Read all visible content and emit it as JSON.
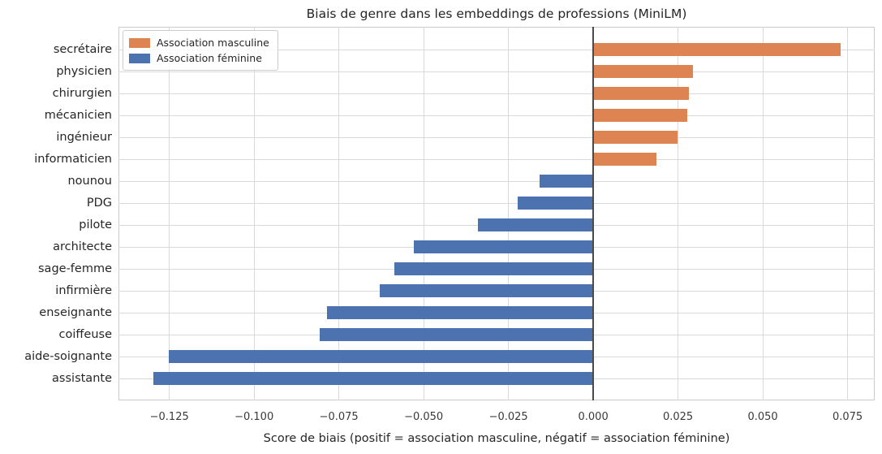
{
  "chart_data": {
    "type": "bar",
    "orientation": "horizontal",
    "title": "Biais de genre dans les embeddings de professions (MiniLM)",
    "xlabel": "Score de biais (positif = association masculine, négatif = association féminine)",
    "categories": [
      "secrétaire",
      "physicien",
      "chirurgien",
      "mécanicien",
      "ingénieur",
      "informaticien",
      "nounou",
      "PDG",
      "pilote",
      "architecte",
      "sage-femme",
      "infirmière",
      "enseignante",
      "coiffeuse",
      "aide-soignante",
      "assistante"
    ],
    "values": [
      0.0729,
      0.0295,
      0.0282,
      0.0277,
      0.0249,
      0.0186,
      -0.0158,
      -0.0222,
      -0.0341,
      -0.0529,
      -0.0587,
      -0.063,
      -0.0785,
      -0.0806,
      -0.1252,
      -0.1297
    ],
    "colors": {
      "positive": "#DD8452",
      "negative": "#4C72B0"
    },
    "legend": [
      {
        "label": "Association masculine",
        "color": "#DD8452"
      },
      {
        "label": "Association féminine",
        "color": "#4C72B0"
      }
    ],
    "legend_position": "upper left",
    "grid": true,
    "xlim": [
      -0.14,
      0.083
    ],
    "xticks": [
      {
        "value": -0.125,
        "label": "−0.125"
      },
      {
        "value": -0.1,
        "label": "−0.100"
      },
      {
        "value": -0.075,
        "label": "−0.075"
      },
      {
        "value": -0.05,
        "label": "−0.050"
      },
      {
        "value": -0.025,
        "label": "−0.025"
      },
      {
        "value": 0.0,
        "label": "0.000"
      },
      {
        "value": 0.025,
        "label": "0.025"
      },
      {
        "value": 0.05,
        "label": "0.050"
      },
      {
        "value": 0.075,
        "label": "0.075"
      }
    ]
  }
}
